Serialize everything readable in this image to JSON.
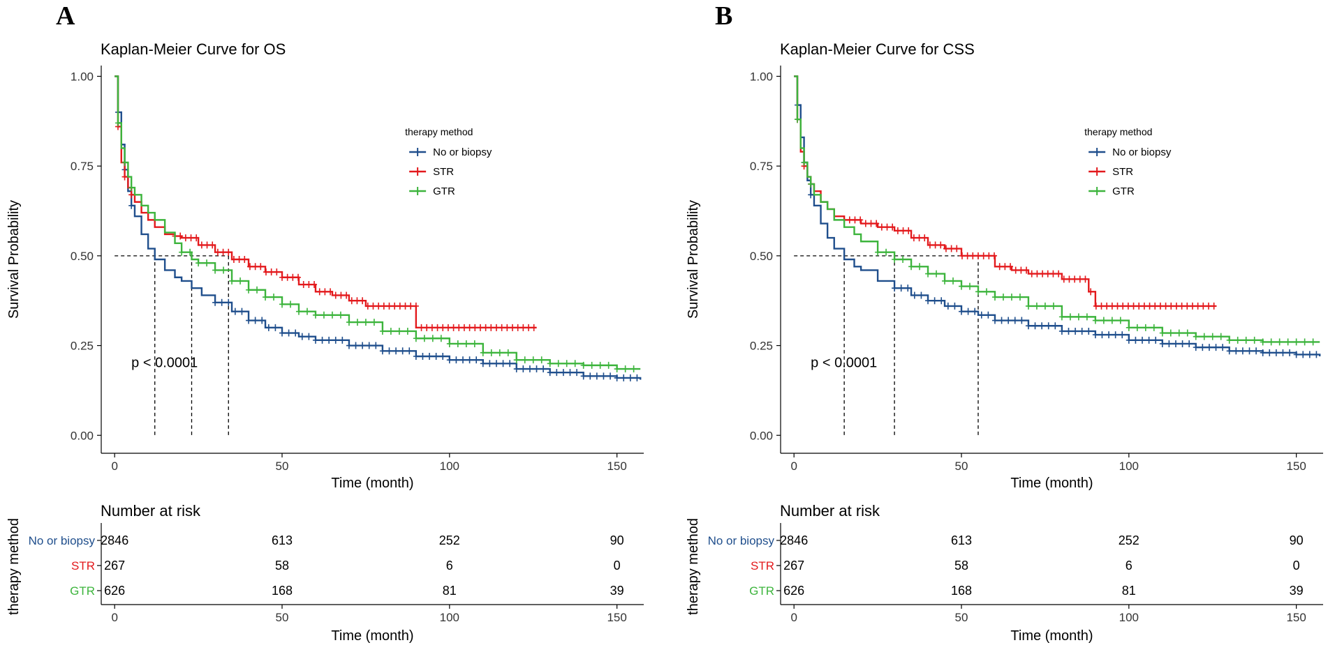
{
  "figure": {
    "panels": [
      "A",
      "B"
    ]
  },
  "colors": {
    "no_or_biopsy": "#1F4E8C",
    "str": "#E3191C",
    "gtr": "#3CB43C",
    "axis": "#000000"
  },
  "chart_data": [
    {
      "type": "line",
      "panel": "A",
      "title": "Kaplan-Meier Curve for OS",
      "xlabel": "Time (month)",
      "ylabel": "Survival Probability",
      "xlim": [
        -4,
        158
      ],
      "ylim": [
        -0.05,
        1.03
      ],
      "xticks": [
        0,
        50,
        100,
        150
      ],
      "xtick_labels": [
        "0",
        "50",
        "100",
        "150"
      ],
      "yticks": [
        0,
        0.25,
        0.5,
        0.75,
        1.0
      ],
      "ytick_labels": [
        "0.00",
        "0.25",
        "0.50",
        "0.75",
        "1.00"
      ],
      "legend_title": "therapy method",
      "legend_position": "top-right",
      "pvalue_label": "p < 0.0001",
      "pvalue_at": [
        5,
        0.19
      ],
      "medians": [
        12,
        23,
        34
      ],
      "series": [
        {
          "name": "No or biopsy",
          "color_key": "no_or_biopsy",
          "x": [
            0,
            1,
            2,
            3,
            4,
            5,
            6,
            8,
            10,
            12,
            15,
            18,
            20,
            23,
            26,
            30,
            35,
            40,
            45,
            50,
            55,
            60,
            70,
            80,
            90,
            100,
            110,
            120,
            130,
            140,
            150,
            157
          ],
          "y": [
            1.0,
            0.9,
            0.81,
            0.74,
            0.68,
            0.64,
            0.61,
            0.56,
            0.52,
            0.49,
            0.46,
            0.44,
            0.43,
            0.41,
            0.39,
            0.37,
            0.345,
            0.32,
            0.3,
            0.285,
            0.275,
            0.265,
            0.25,
            0.235,
            0.22,
            0.21,
            0.2,
            0.185,
            0.175,
            0.165,
            0.16,
            0.155
          ],
          "censor_start": 30,
          "censor_step": 2
        },
        {
          "name": "STR",
          "color_key": "str",
          "x": [
            0,
            1,
            2,
            3,
            4,
            5,
            6,
            8,
            10,
            12,
            15,
            18,
            20,
            25,
            30,
            35,
            40,
            45,
            50,
            55,
            60,
            65,
            70,
            75,
            80,
            85,
            90,
            95,
            100,
            110,
            120,
            126
          ],
          "y": [
            1.0,
            0.86,
            0.76,
            0.72,
            0.69,
            0.67,
            0.65,
            0.62,
            0.6,
            0.58,
            0.56,
            0.555,
            0.55,
            0.53,
            0.51,
            0.49,
            0.47,
            0.455,
            0.44,
            0.42,
            0.4,
            0.39,
            0.375,
            0.36,
            0.36,
            0.36,
            0.3,
            0.3,
            0.3,
            0.3,
            0.3,
            0.3
          ],
          "censor_start": 18,
          "censor_step": 1.6
        },
        {
          "name": "GTR",
          "color_key": "gtr",
          "x": [
            0,
            1,
            2,
            3,
            4,
            5,
            6,
            8,
            10,
            12,
            15,
            18,
            20,
            23,
            25,
            30,
            35,
            40,
            45,
            50,
            55,
            60,
            70,
            80,
            90,
            100,
            110,
            120,
            130,
            140,
            150,
            157
          ],
          "y": [
            1.0,
            0.87,
            0.8,
            0.76,
            0.72,
            0.69,
            0.67,
            0.64,
            0.62,
            0.6,
            0.565,
            0.535,
            0.51,
            0.49,
            0.48,
            0.46,
            0.43,
            0.405,
            0.385,
            0.365,
            0.345,
            0.335,
            0.315,
            0.29,
            0.27,
            0.255,
            0.23,
            0.21,
            0.2,
            0.195,
            0.185,
            0.185
          ],
          "censor_start": 20,
          "censor_step": 2.5
        }
      ],
      "risk_table": {
        "title": "Number at risk",
        "ylabel": "therapy method",
        "xlabel": "Time (month)",
        "times": [
          0,
          50,
          100,
          150
        ],
        "time_labels": [
          "0",
          "50",
          "100",
          "150"
        ],
        "rows": [
          {
            "label": "No or biopsy",
            "color_key": "no_or_biopsy",
            "values": [
              "2846",
              "613",
              "252",
              "90"
            ]
          },
          {
            "label": "STR",
            "color_key": "str",
            "values": [
              "267",
              "58",
              "6",
              "0"
            ]
          },
          {
            "label": "GTR",
            "color_key": "gtr",
            "values": [
              "626",
              "168",
              "81",
              "39"
            ]
          }
        ]
      }
    },
    {
      "type": "line",
      "panel": "B",
      "title": "Kaplan-Meier Curve for CSS",
      "xlabel": "Time (month)",
      "ylabel": "Survival Probability",
      "xlim": [
        -4,
        158
      ],
      "ylim": [
        -0.05,
        1.03
      ],
      "xticks": [
        0,
        50,
        100,
        150
      ],
      "xtick_labels": [
        "0",
        "50",
        "100",
        "150"
      ],
      "yticks": [
        0,
        0.25,
        0.5,
        0.75,
        1.0
      ],
      "ytick_labels": [
        "0.00",
        "0.25",
        "0.50",
        "0.75",
        "1.00"
      ],
      "legend_title": "therapy method",
      "legend_position": "top-right",
      "pvalue_label": "p < 0.0001",
      "pvalue_at": [
        5,
        0.19
      ],
      "medians": [
        15,
        30,
        55
      ],
      "series": [
        {
          "name": "No or biopsy",
          "color_key": "no_or_biopsy",
          "x": [
            0,
            1,
            2,
            3,
            4,
            5,
            6,
            8,
            10,
            12,
            15,
            18,
            20,
            25,
            30,
            35,
            40,
            45,
            50,
            55,
            60,
            70,
            80,
            90,
            100,
            110,
            120,
            130,
            140,
            150,
            157
          ],
          "y": [
            1.0,
            0.92,
            0.83,
            0.76,
            0.71,
            0.67,
            0.64,
            0.59,
            0.55,
            0.52,
            0.49,
            0.47,
            0.46,
            0.43,
            0.41,
            0.39,
            0.375,
            0.36,
            0.345,
            0.335,
            0.32,
            0.305,
            0.29,
            0.28,
            0.265,
            0.255,
            0.245,
            0.235,
            0.23,
            0.225,
            0.22
          ],
          "censor_start": 30,
          "censor_step": 2
        },
        {
          "name": "STR",
          "color_key": "str",
          "x": [
            0,
            1,
            2,
            3,
            4,
            5,
            6,
            8,
            10,
            12,
            15,
            18,
            20,
            25,
            30,
            35,
            40,
            45,
            50,
            55,
            60,
            65,
            70,
            80,
            85,
            88,
            90,
            95,
            100,
            110,
            120,
            126
          ],
          "y": [
            1.0,
            0.88,
            0.79,
            0.75,
            0.72,
            0.7,
            0.68,
            0.65,
            0.63,
            0.61,
            0.6,
            0.6,
            0.59,
            0.58,
            0.57,
            0.55,
            0.53,
            0.52,
            0.5,
            0.5,
            0.47,
            0.46,
            0.45,
            0.435,
            0.435,
            0.4,
            0.36,
            0.36,
            0.36,
            0.36,
            0.36,
            0.36
          ],
          "censor_start": 15,
          "censor_step": 1.6
        },
        {
          "name": "GTR",
          "color_key": "gtr",
          "x": [
            0,
            1,
            2,
            3,
            4,
            5,
            6,
            8,
            10,
            12,
            15,
            18,
            20,
            25,
            30,
            35,
            40,
            45,
            50,
            55,
            60,
            70,
            80,
            90,
            100,
            110,
            120,
            130,
            140,
            150,
            157
          ],
          "y": [
            1.0,
            0.88,
            0.8,
            0.76,
            0.72,
            0.7,
            0.67,
            0.65,
            0.63,
            0.6,
            0.58,
            0.56,
            0.54,
            0.51,
            0.49,
            0.47,
            0.45,
            0.43,
            0.415,
            0.4,
            0.385,
            0.36,
            0.33,
            0.32,
            0.3,
            0.285,
            0.275,
            0.265,
            0.26,
            0.26,
            0.26
          ],
          "censor_start": 25,
          "censor_step": 2.5
        }
      ],
      "risk_table": {
        "title": "Number at risk",
        "ylabel": "therapy method",
        "xlabel": "Time (month)",
        "times": [
          0,
          50,
          100,
          150
        ],
        "time_labels": [
          "0",
          "50",
          "100",
          "150"
        ],
        "rows": [
          {
            "label": "No or biopsy",
            "color_key": "no_or_biopsy",
            "values": [
              "2846",
              "613",
              "252",
              "90"
            ]
          },
          {
            "label": "STR",
            "color_key": "str",
            "values": [
              "267",
              "58",
              "6",
              "0"
            ]
          },
          {
            "label": "GTR",
            "color_key": "gtr",
            "values": [
              "626",
              "168",
              "81",
              "39"
            ]
          }
        ]
      }
    }
  ]
}
